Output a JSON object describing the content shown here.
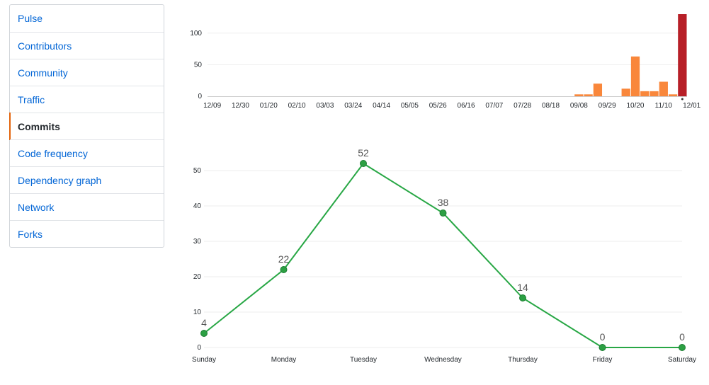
{
  "sidebar": {
    "items": [
      {
        "label": "Pulse",
        "selected": false
      },
      {
        "label": "Contributors",
        "selected": false
      },
      {
        "label": "Community",
        "selected": false
      },
      {
        "label": "Traffic",
        "selected": false
      },
      {
        "label": "Commits",
        "selected": true
      },
      {
        "label": "Code frequency",
        "selected": false
      },
      {
        "label": "Dependency graph",
        "selected": false
      },
      {
        "label": "Network",
        "selected": false
      },
      {
        "label": "Forks",
        "selected": false
      }
    ]
  },
  "colors": {
    "bar": "#f9873b",
    "bar_selected": "#b71f27",
    "line": "#28a745",
    "point": "#2ca043",
    "grid": "#eeeeee",
    "axis_text": "#24292e",
    "label_text": "#555555"
  },
  "chart_data": [
    {
      "type": "bar",
      "x_ticks": [
        "12/09",
        "12/30",
        "01/20",
        "02/10",
        "03/03",
        "03/24",
        "04/14",
        "05/05",
        "05/26",
        "06/16",
        "07/07",
        "07/28",
        "08/18",
        "09/08",
        "09/29",
        "10/20",
        "11/10",
        "12/01"
      ],
      "values": [
        0,
        0,
        0,
        0,
        0,
        0,
        0,
        0,
        0,
        0,
        0,
        0,
        0,
        0,
        0,
        0,
        0,
        0,
        0,
        0,
        0,
        0,
        0,
        0,
        0,
        0,
        0,
        0,
        0,
        0,
        0,
        0,
        0,
        0,
        0,
        0,
        0,
        0,
        0,
        3,
        3,
        20,
        0,
        0,
        12,
        63,
        8,
        8,
        23,
        3,
        130
      ],
      "selected_index": 50,
      "ylim": [
        0,
        130
      ],
      "y_ticks": [
        0,
        50,
        100
      ],
      "grid": true
    },
    {
      "type": "line",
      "categories": [
        "Sunday",
        "Monday",
        "Tuesday",
        "Wednesday",
        "Thursday",
        "Friday",
        "Saturday"
      ],
      "values": [
        4,
        22,
        52,
        38,
        14,
        0,
        0
      ],
      "ylim": [
        0,
        52
      ],
      "y_ticks": [
        0,
        10,
        20,
        30,
        40,
        50
      ],
      "grid": true
    }
  ]
}
